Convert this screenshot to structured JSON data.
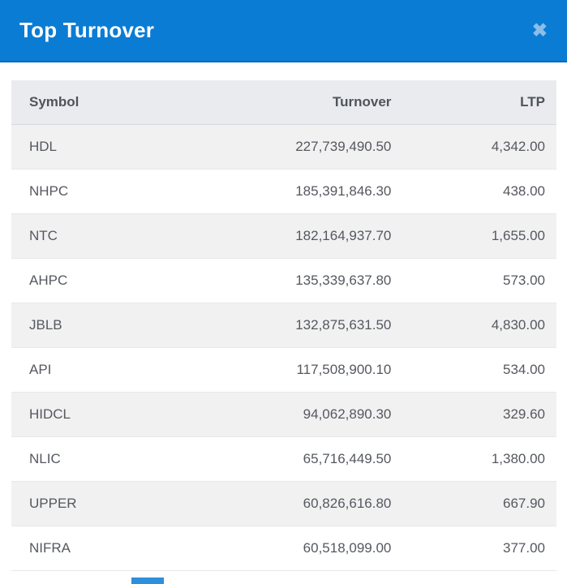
{
  "modal": {
    "title": "Top Turnover"
  },
  "icons": {
    "close": "✖"
  },
  "colors": {
    "header_bg": "#0b7cd4",
    "header_border_bottom": "#0a6cbd",
    "title_text": "#ffffff",
    "close_icon": "#8cbee8",
    "table_header_bg": "#e9ebee",
    "table_header_text": "#4f545b",
    "row_stripe_bg": "#f1f1f2",
    "row_text": "#55585e",
    "row_border": "#e6e8ea",
    "pagination_active_bg": "#2e8fdb"
  },
  "table": {
    "columns": [
      {
        "label": "Symbol"
      },
      {
        "label": "Turnover"
      },
      {
        "label": "LTP"
      }
    ],
    "rows": [
      {
        "symbol": "HDL",
        "turnover": "227,739,490.50",
        "ltp": "4,342.00"
      },
      {
        "symbol": "NHPC",
        "turnover": "185,391,846.30",
        "ltp": "438.00"
      },
      {
        "symbol": "NTC",
        "turnover": "182,164,937.70",
        "ltp": "1,655.00"
      },
      {
        "symbol": "AHPC",
        "turnover": "135,339,637.80",
        "ltp": "573.00"
      },
      {
        "symbol": "JBLB",
        "turnover": "132,875,631.50",
        "ltp": "4,830.00"
      },
      {
        "symbol": "API",
        "turnover": "117,508,900.10",
        "ltp": "534.00"
      },
      {
        "symbol": "HIDCL",
        "turnover": "94,062,890.30",
        "ltp": "329.60"
      },
      {
        "symbol": "NLIC",
        "turnover": "65,716,449.50",
        "ltp": "1,380.00"
      },
      {
        "symbol": "UPPER",
        "turnover": "60,826,616.80",
        "ltp": "667.90"
      },
      {
        "symbol": "NIFRA",
        "turnover": "60,518,099.00",
        "ltp": "377.00"
      }
    ]
  }
}
